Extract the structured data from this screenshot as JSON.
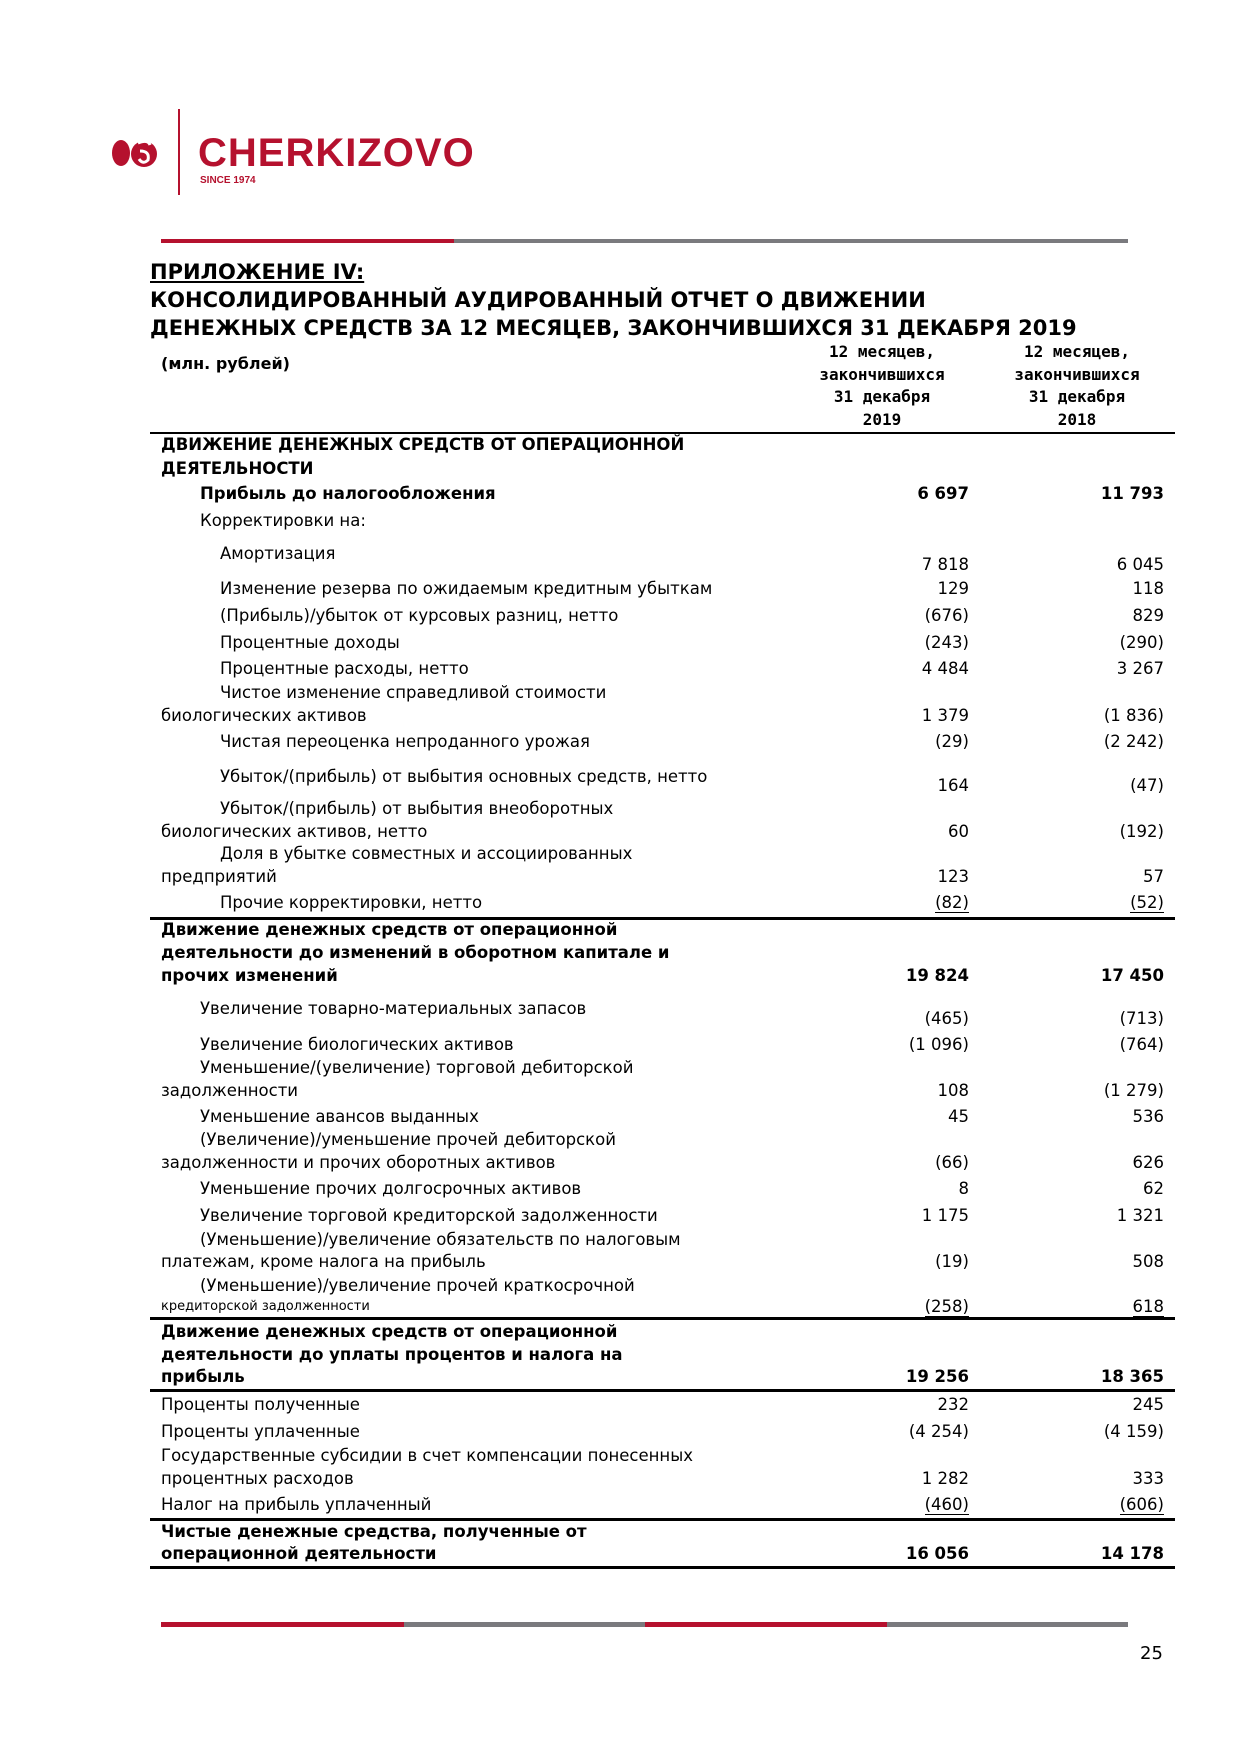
{
  "brand": {
    "name": "CHERKIZOVO",
    "tagline": "SINCE 1974",
    "colors": {
      "red": "#b5112e",
      "gray": "#7a7a7e"
    }
  },
  "title": {
    "appendix": "ПРИЛОЖЕНИЕ IV:",
    "line1": "КОНСОЛИДИРОВАННЫЙ АУДИРОВАННЫЙ ОТЧЕТ О ДВИЖЕНИИ",
    "line2": "ДЕНЕЖНЫХ СРЕДСТВ ЗА 12 МЕСЯЦЕВ, ЗАКОНЧИВШИХСЯ 31 ДЕКАБРЯ 2019"
  },
  "table": {
    "units": "(млн. рублей)",
    "columns": [
      {
        "lines": [
          "12 месяцев,",
          "закончившихся",
          "31 декабря",
          "2019"
        ]
      },
      {
        "lines": [
          "12 месяцев,",
          "закончившихся",
          "31 декабря",
          "2018"
        ]
      }
    ],
    "rows": [
      {
        "lines": [
          "ДВИЖЕНИЕ ДЕНЕЖНЫХ СРЕДСТВ ОТ ОПЕРАЦИОННОЙ",
          "ДЕЯТЕЛЬНОСТИ"
        ],
        "v2019": "",
        "v2018": ""
      },
      {
        "lines": [
          "Прибыль до налогообложения"
        ],
        "v2019": "6 697",
        "v2018": "11 793"
      },
      {
        "lines": [
          "Корректировки на:"
        ],
        "v2019": "",
        "v2018": ""
      },
      {
        "lines": [
          "Амортизация"
        ],
        "v2019": "7 818",
        "v2018": "6 045"
      },
      {
        "lines": [
          "Изменение резерва по ожидаемым кредитным убыткам"
        ],
        "v2019": "129",
        "v2018": "118"
      },
      {
        "lines": [
          "(Прибыль)/убыток от курсовых разниц, нетто"
        ],
        "v2019": "(676)",
        "v2018": "829"
      },
      {
        "lines": [
          "Процентные доходы"
        ],
        "v2019": "(243)",
        "v2018": "(290)"
      },
      {
        "lines": [
          "Процентные расходы, нетто"
        ],
        "v2019": "4 484",
        "v2018": "3 267"
      },
      {
        "lines": [
          "Чистое изменение справедливой стоимости",
          "биологических активов"
        ],
        "v2019": "1 379",
        "v2018": "(1 836)"
      },
      {
        "lines": [
          "Чистая переоценка непроданного урожая"
        ],
        "v2019": "(29)",
        "v2018": "(2 242)"
      },
      {
        "lines": [
          "Убыток/(прибыль) от выбытия основных средств, нетто"
        ],
        "v2019": "164",
        "v2018": "(47)"
      },
      {
        "lines": [
          "Убыток/(прибыль) от выбытия внеоборотных",
          "биологических активов, нетто"
        ],
        "v2019": "60",
        "v2018": "(192)"
      },
      {
        "lines": [
          "Доля в убытке совместных и ассоциированных",
          "предприятий"
        ],
        "v2019": "123",
        "v2018": "57"
      },
      {
        "lines": [
          "Прочие корректировки, нетто"
        ],
        "v2019": "(82)",
        "v2018": "(52)"
      },
      {
        "lines": [
          "Движение денежных средств от операционной",
          "деятельности до изменений в оборотном капитале и",
          "прочих изменений"
        ],
        "v2019": "19 824",
        "v2018": "17 450"
      },
      {
        "lines": [
          "Увеличение товарно-материальных запасов"
        ],
        "v2019": "(465)",
        "v2018": "(713)"
      },
      {
        "lines": [
          "Увеличение биологических активов"
        ],
        "v2019": "(1 096)",
        "v2018": "(764)"
      },
      {
        "lines": [
          "Уменьшение/(увеличение) торговой дебиторской",
          "задолженности"
        ],
        "v2019": "108",
        "v2018": "(1 279)"
      },
      {
        "lines": [
          "Уменьшение авансов выданных"
        ],
        "v2019": "45",
        "v2018": "536"
      },
      {
        "lines": [
          "(Увеличение)/уменьшение прочей дебиторской",
          "задолженности и прочих оборотных активов"
        ],
        "v2019": "(66)",
        "v2018": "626"
      },
      {
        "lines": [
          "Уменьшение прочих долгосрочных активов"
        ],
        "v2019": "8",
        "v2018": "62"
      },
      {
        "lines": [
          "Увеличение торговой кредиторской задолженности"
        ],
        "v2019": "1 175",
        "v2018": "1 321"
      },
      {
        "lines": [
          "(Уменьшение)/увеличение  обязательств по налоговым",
          "платежам, кроме налога на прибыль"
        ],
        "v2019": "(19)",
        "v2018": "508"
      },
      {
        "lines": [
          "(Уменьшение)/увеличение прочей краткосрочной",
          "кредиторской задолженности"
        ],
        "v2019": "(258)",
        "v2018": "618"
      },
      {
        "lines": [
          "Движение денежных средств от операционной",
          "деятельности до уплаты процентов и налога на",
          "прибыль"
        ],
        "v2019": "19 256",
        "v2018": "18 365"
      },
      {
        "lines": [
          "Проценты полученные"
        ],
        "v2019": "232",
        "v2018": "245"
      },
      {
        "lines": [
          "Проценты уплаченные"
        ],
        "v2019": "(4 254)",
        "v2018": "(4 159)"
      },
      {
        "lines": [
          "Государственные субсидии в счет компенсации понесенных",
          "процентных расходов"
        ],
        "v2019": "1 282",
        "v2018": "333"
      },
      {
        "lines": [
          "Налог на прибыль уплаченный"
        ],
        "v2019": "(460)",
        "v2018": "(606)"
      },
      {
        "lines": [
          "Чистые денежные средства, полученные от",
          "операционной деятельности"
        ],
        "v2019": "16 056",
        "v2018": "14 178"
      }
    ]
  },
  "footer": {
    "page_number": "25"
  }
}
